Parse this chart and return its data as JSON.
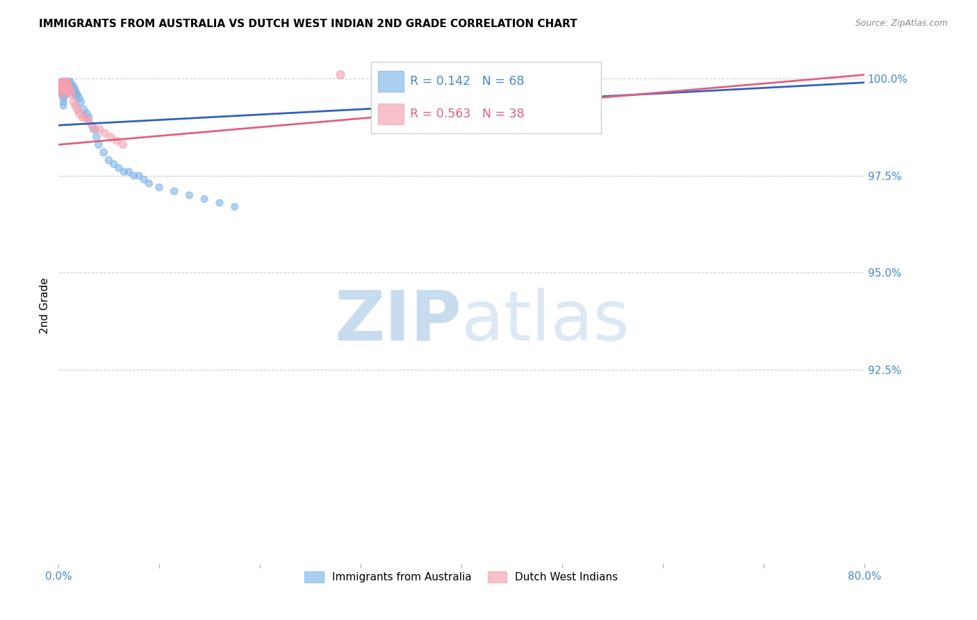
{
  "title": "IMMIGRANTS FROM AUSTRALIA VS DUTCH WEST INDIAN 2ND GRADE CORRELATION CHART",
  "source": "Source: ZipAtlas.com",
  "ylabel": "2nd Grade",
  "xlim": [
    0.0,
    0.8
  ],
  "ylim": [
    0.875,
    1.008
  ],
  "yticks_right": [
    0.925,
    0.95,
    0.975,
    1.0
  ],
  "ytick_labels_right": [
    "92.5%",
    "95.0%",
    "97.5%",
    "100.0%"
  ],
  "xticks": [
    0.0,
    0.1,
    0.2,
    0.3,
    0.4,
    0.5,
    0.6,
    0.7,
    0.8
  ],
  "xtick_labels": [
    "0.0%",
    "",
    "",
    "",
    "",
    "",
    "",
    "",
    "80.0%"
  ],
  "legend_labels": [
    "Immigrants from Australia",
    "Dutch West Indians"
  ],
  "blue_color": "#7EB6E8",
  "pink_color": "#F4A0B0",
  "blue_line_color": "#3060C0",
  "pink_line_color": "#E06080",
  "R_blue": 0.142,
  "N_blue": 68,
  "R_pink": 0.563,
  "N_pink": 38,
  "blue_line_x": [
    0.0,
    0.8
  ],
  "blue_line_y": [
    0.988,
    0.999
  ],
  "pink_line_x": [
    0.0,
    0.8
  ],
  "pink_line_y": [
    0.983,
    1.001
  ],
  "blue_scatter_x": [
    0.001,
    0.001,
    0.002,
    0.002,
    0.002,
    0.003,
    0.003,
    0.003,
    0.003,
    0.004,
    0.004,
    0.004,
    0.004,
    0.005,
    0.005,
    0.005,
    0.005,
    0.005,
    0.005,
    0.005,
    0.005,
    0.006,
    0.006,
    0.006,
    0.007,
    0.007,
    0.007,
    0.007,
    0.008,
    0.008,
    0.008,
    0.009,
    0.009,
    0.01,
    0.01,
    0.011,
    0.011,
    0.012,
    0.013,
    0.014,
    0.015,
    0.016,
    0.017,
    0.018,
    0.02,
    0.022,
    0.025,
    0.028,
    0.03,
    0.035,
    0.038,
    0.04,
    0.045,
    0.05,
    0.055,
    0.06,
    0.065,
    0.07,
    0.075,
    0.08,
    0.085,
    0.09,
    0.1,
    0.115,
    0.13,
    0.145,
    0.16,
    0.175
  ],
  "blue_scatter_y": [
    0.999,
    0.998,
    0.999,
    0.998,
    0.997,
    0.999,
    0.998,
    0.997,
    0.996,
    0.999,
    0.998,
    0.997,
    0.996,
    0.999,
    0.998,
    0.998,
    0.997,
    0.996,
    0.995,
    0.994,
    0.993,
    0.999,
    0.998,
    0.997,
    0.999,
    0.998,
    0.997,
    0.996,
    0.999,
    0.998,
    0.997,
    0.999,
    0.997,
    0.999,
    0.997,
    0.999,
    0.997,
    0.998,
    0.997,
    0.998,
    0.997,
    0.997,
    0.996,
    0.996,
    0.995,
    0.994,
    0.992,
    0.991,
    0.99,
    0.987,
    0.985,
    0.983,
    0.981,
    0.979,
    0.978,
    0.977,
    0.976,
    0.976,
    0.975,
    0.975,
    0.974,
    0.973,
    0.972,
    0.971,
    0.97,
    0.969,
    0.968,
    0.967
  ],
  "blue_scatter_sizes": [
    50,
    45,
    55,
    50,
    45,
    60,
    55,
    50,
    45,
    60,
    55,
    50,
    45,
    80,
    75,
    70,
    65,
    60,
    55,
    50,
    45,
    75,
    70,
    65,
    80,
    75,
    70,
    65,
    80,
    75,
    70,
    80,
    70,
    85,
    75,
    85,
    75,
    80,
    75,
    80,
    75,
    75,
    70,
    70,
    70,
    65,
    65,
    60,
    60,
    60,
    55,
    55,
    55,
    55,
    50,
    50,
    50,
    50,
    50,
    50,
    50,
    50,
    50,
    50,
    48,
    48,
    48,
    48
  ],
  "pink_scatter_x": [
    0.001,
    0.002,
    0.003,
    0.003,
    0.004,
    0.004,
    0.005,
    0.005,
    0.005,
    0.006,
    0.006,
    0.007,
    0.007,
    0.008,
    0.008,
    0.009,
    0.009,
    0.01,
    0.011,
    0.012,
    0.013,
    0.015,
    0.017,
    0.019,
    0.021,
    0.024,
    0.027,
    0.03,
    0.033,
    0.037,
    0.041,
    0.046,
    0.052,
    0.058,
    0.064,
    0.28,
    0.002,
    0.003
  ],
  "pink_scatter_y": [
    0.999,
    0.999,
    0.999,
    0.998,
    0.999,
    0.997,
    0.999,
    0.998,
    0.996,
    0.999,
    0.997,
    0.999,
    0.997,
    0.999,
    0.997,
    0.999,
    0.997,
    0.998,
    0.997,
    0.997,
    0.996,
    0.994,
    0.993,
    0.992,
    0.991,
    0.99,
    0.99,
    0.989,
    0.988,
    0.987,
    0.987,
    0.986,
    0.985,
    0.984,
    0.983,
    1.001,
    0.998,
    0.997
  ],
  "pink_scatter_sizes": [
    55,
    60,
    65,
    60,
    65,
    60,
    70,
    65,
    60,
    70,
    65,
    70,
    65,
    70,
    65,
    70,
    65,
    65,
    65,
    65,
    65,
    60,
    60,
    60,
    60,
    60,
    60,
    55,
    55,
    55,
    55,
    55,
    55,
    55,
    55,
    70,
    60,
    60
  ],
  "watermark_zip": "ZIP",
  "watermark_atlas": "atlas",
  "background_color": "#ffffff",
  "grid_color": "#cccccc",
  "title_fontsize": 11,
  "tick_label_color": "#4488cc"
}
